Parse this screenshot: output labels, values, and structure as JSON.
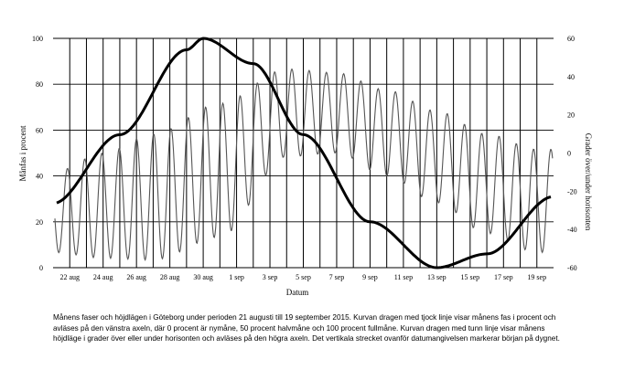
{
  "chart_data": {
    "type": "line",
    "xlabel": "Datum",
    "ylabel_left": "Månfas i procent",
    "ylabel_right": "Grader över/under horisonten",
    "x_range": [
      "2015-08-21",
      "2015-09-20"
    ],
    "x_tick_labels": [
      "22 aug",
      "24 aug",
      "26 aug",
      "28 aug",
      "30 aug",
      "1 sep",
      "3 sep",
      "5 sep",
      "7 sep",
      "9 sep",
      "11 sep",
      "13 sep",
      "15 sep",
      "17 sep",
      "19 sep"
    ],
    "ylim_left": [
      0,
      100
    ],
    "y_ticks_left": [
      "0",
      "20",
      "40",
      "60",
      "80",
      "100"
    ],
    "ylim_right": [
      -60,
      60
    ],
    "y_ticks_right": [
      "-60",
      "-40",
      "-20",
      "0",
      "20",
      "40",
      "60"
    ],
    "grid": "horizontal at 20-steps of the left axis; vertical line at the start of each day",
    "series": [
      {
        "axis": "left",
        "style": "thick black",
        "x": [
          "2015-08-21",
          "2015-08-25",
          "2015-08-29",
          "2015-08-30",
          "2015-09-02",
          "2015-09-05",
          "2015-09-09",
          "2015-09-13",
          "2015-09-16",
          "2015-09-20"
        ],
        "values": [
          28,
          58,
          95,
          100,
          89,
          58,
          20,
          0,
          6,
          31
        ]
      },
      {
        "axis": "right",
        "style": "thin grey",
        "x": [
          "2015-08-21",
          "2015-08-24",
          "2015-08-27",
          "2015-08-31",
          "2015-09-04",
          "2015-09-07",
          "2015-09-10",
          "2015-09-13",
          "2015-09-16",
          "2015-09-19"
        ],
        "high": [
          -10,
          0,
          10,
          26,
          44,
          42,
          33,
          22,
          10,
          2
        ],
        "low": [
          -52,
          -55,
          -56,
          -44,
          -2,
          0,
          -12,
          -26,
          -42,
          -52
        ]
      }
    ],
    "caption": "Månens faser och höjdlägen i Göteborg under perioden 21 augusti till 19 september 2015. Kurvan dragen med tjock linje visar månens fas i procent och avläses på den vänstra axeln, där 0 procent är nymåne, 50 procent halvmåne och 100 procent fullmåne. Kurvan dragen med tunn linje visar månens höjdläge i grader över eller under horisonten och avläses på den högra axeln. Det vertikala strecket ovanför datumangivelsen markerar början på dygnet."
  }
}
